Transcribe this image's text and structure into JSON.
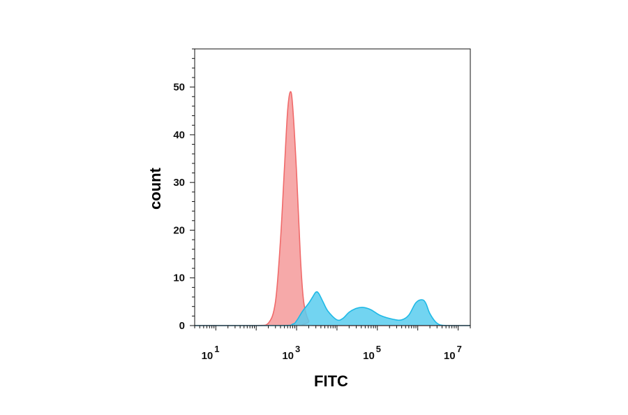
{
  "chart_data": {
    "type": "area",
    "title": "",
    "xlabel": "FITC",
    "ylabel": "count",
    "x_scale": "log",
    "xlim": [
      3,
      20000000
    ],
    "ylim": [
      0,
      58
    ],
    "grid": false,
    "legend": "none",
    "x_ticks": [
      {
        "value": 10,
        "base": "10",
        "exp": "1"
      },
      {
        "value": 1000,
        "base": "10",
        "exp": "3"
      },
      {
        "value": 100000,
        "base": "10",
        "exp": "5"
      },
      {
        "value": 10000000,
        "base": "10",
        "exp": "7"
      }
    ],
    "y_ticks": [
      0,
      10,
      20,
      30,
      40,
      50
    ],
    "series": [
      {
        "color": "#f06a6a",
        "fill": "#f59a9a",
        "points": [
          [
            3,
            0
          ],
          [
            100,
            0
          ],
          [
            200,
            0.5
          ],
          [
            300,
            5
          ],
          [
            400,
            18
          ],
          [
            500,
            33
          ],
          [
            600,
            45
          ],
          [
            700,
            49
          ],
          [
            800,
            46
          ],
          [
            1000,
            32
          ],
          [
            1250,
            14
          ],
          [
            1500,
            5
          ],
          [
            2000,
            1
          ],
          [
            3000,
            0
          ],
          [
            20000000,
            0
          ]
        ]
      },
      {
        "color": "#1fb9e6",
        "fill": "#59cdef",
        "points": [
          [
            3,
            0
          ],
          [
            400,
            0
          ],
          [
            800,
            0.3
          ],
          [
            1000,
            1
          ],
          [
            1400,
            3
          ],
          [
            2000,
            4.7
          ],
          [
            2500,
            6
          ],
          [
            3000,
            7
          ],
          [
            3500,
            6.8
          ],
          [
            4500,
            5
          ],
          [
            6000,
            3
          ],
          [
            10000,
            1.2
          ],
          [
            14000,
            1.5
          ],
          [
            20000,
            2.8
          ],
          [
            30000,
            3.6
          ],
          [
            45000,
            3.8
          ],
          [
            70000,
            3.3
          ],
          [
            120000,
            2.1
          ],
          [
            250000,
            1.3
          ],
          [
            400000,
            1.2
          ],
          [
            600000,
            2.2
          ],
          [
            900000,
            4.8
          ],
          [
            1300000,
            5.4
          ],
          [
            1600000,
            4.6
          ],
          [
            2000000,
            2.5
          ],
          [
            3000000,
            0.5
          ],
          [
            5000000,
            0
          ],
          [
            20000000,
            0
          ]
        ]
      }
    ]
  }
}
